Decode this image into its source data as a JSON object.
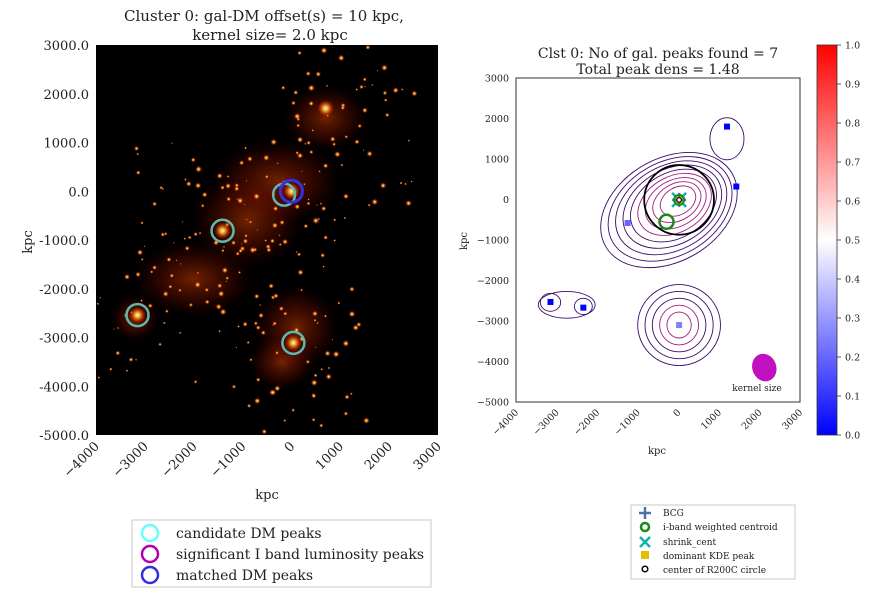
{
  "chart_data": [
    {
      "type": "heatmap",
      "title": [
        "Cluster 0: gal-DM offset(s) = 10 kpc,",
        "kernel size= 2.0 kpc"
      ],
      "xlabel": "kpc",
      "ylabel": "kpc",
      "xlim": [
        -4000,
        3000
      ],
      "ylim": [
        -5000,
        3000
      ],
      "xticks": [
        "−4000",
        "−3000",
        "−2000",
        "−1000",
        "0",
        "1000",
        "2000",
        "3000"
      ],
      "xtick_values": [
        -4000,
        -3000,
        -2000,
        -1000,
        0,
        1000,
        2000,
        3000
      ],
      "yticks": [
        "3000.0",
        "2000.0",
        "1000.0",
        "0.0",
        "-1000.0",
        "-2000.0",
        "-3000.0",
        "-4000.0",
        "-5000.0"
      ],
      "ytick_values": [
        3000,
        2000,
        1000,
        0,
        -1000,
        -2000,
        -3000,
        -4000,
        -5000
      ],
      "colors": {
        "background": "#000000",
        "candidate": "#5fb8b0",
        "matched": "#3a2fe0",
        "significant": "#b020b0"
      },
      "candidate_dm_peaks": [
        [
          -150,
          -70
        ],
        [
          -1410,
          -810
        ],
        [
          -3150,
          -2540
        ],
        [
          40,
          -3110
        ]
      ],
      "matched_dm_peaks": [
        [
          0,
          0
        ]
      ],
      "legend": {
        "position": "bottom",
        "entries": [
          {
            "label": "candidate DM peaks",
            "color": "#66ffff"
          },
          {
            "label": "significant I band luminosity peaks",
            "color": "#b000b0"
          },
          {
            "label": "matched DM peaks",
            "color": "#3030e0"
          }
        ]
      }
    },
    {
      "type": "scatter",
      "title": [
        "Clst 0: No of gal. peaks found = 7",
        "Total peak dens = 1.48"
      ],
      "xlabel": "kpc",
      "ylabel": "kpc",
      "xlim": [
        -4000,
        3000
      ],
      "ylim": [
        -5000,
        3000
      ],
      "xticks": [
        "−4000",
        "−3000",
        "−2000",
        "−1000",
        "0",
        "1000",
        "2000",
        "3000"
      ],
      "xtick_values": [
        -4000,
        -3000,
        -2000,
        -1000,
        0,
        1000,
        2000,
        3000
      ],
      "yticks": [
        "3000",
        "2000",
        "1000",
        "0",
        "−1000",
        "−2000",
        "−3000",
        "−4000",
        "−5000"
      ],
      "ytick_values": [
        3000,
        2000,
        1000,
        0,
        -1000,
        -2000,
        -3000,
        -4000,
        -5000
      ],
      "peaks": [
        {
          "x": 1200,
          "y": 1800,
          "v": 0.0
        },
        {
          "x": 1430,
          "y": 320,
          "v": 0.0
        },
        {
          "x": -1250,
          "y": -580,
          "v": 0.2
        },
        {
          "x": -3150,
          "y": -2530,
          "v": 0.0
        },
        {
          "x": -2340,
          "y": -2670,
          "v": 0.0
        },
        {
          "x": 20,
          "y": -3100,
          "v": 0.25
        },
        {
          "x": 20,
          "y": -10,
          "v": 0.3
        }
      ],
      "bcg": [
        20,
        -10
      ],
      "i_band_weighted_centroid": [
        -290,
        -550
      ],
      "shrink_cent": [
        20,
        -10
      ],
      "dominant_kde_peak": [
        20,
        -10
      ],
      "r200c_circle": {
        "center": [
          20,
          -10
        ],
        "radius": 860
      },
      "kernel_annotation": "kernel size",
      "kernel_ellipse_center": [
        2120,
        -4150
      ],
      "colors": {
        "contour": "#3a0a6a",
        "contour_inner": "#a0207a",
        "kernel": "#c010c0",
        "bcg": "#4a70b0",
        "centroid": "#1a8a1a",
        "shrink": "#10b0b0",
        "kde": "#e0c000"
      },
      "colorbar": {
        "ticks": [
          "0.0",
          "0.1",
          "0.2",
          "0.3",
          "0.4",
          "0.5",
          "0.6",
          "0.7",
          "0.8",
          "0.9",
          "1.0"
        ],
        "tick_values": [
          0,
          0.1,
          0.2,
          0.3,
          0.4,
          0.5,
          0.6,
          0.7,
          0.8,
          0.9,
          1.0
        ],
        "cmap": [
          "#0000ff",
          "#ffffff",
          "#ff0000"
        ]
      },
      "legend": {
        "position": "bottom-right",
        "entries": [
          {
            "label": "BCG",
            "marker": "plus",
            "color": "#4a70b0"
          },
          {
            "label": "i-band weighted centroid",
            "marker": "ring",
            "color": "#1a8a1a"
          },
          {
            "label": "shrink_cent",
            "marker": "x",
            "color": "#10b0b0"
          },
          {
            "label": "dominant KDE peak",
            "marker": "square",
            "color": "#e0c000"
          },
          {
            "label": "center of R200C circle",
            "marker": "dot",
            "color": "#000000"
          }
        ]
      }
    }
  ]
}
